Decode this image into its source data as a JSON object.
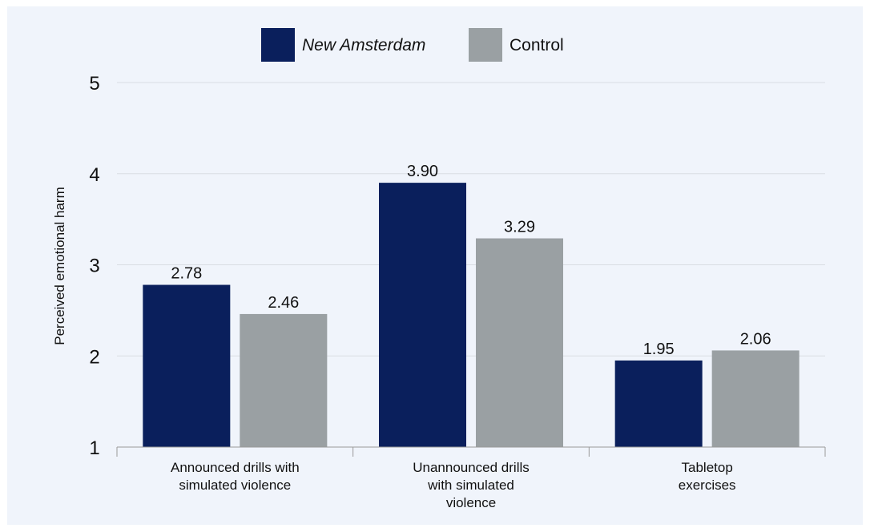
{
  "chart_data": {
    "type": "bar",
    "title": "",
    "xlabel": "",
    "ylabel": "Perceived emotional harm",
    "ylim": [
      1,
      5
    ],
    "yticks": [
      1,
      2,
      3,
      4,
      5
    ],
    "grid": true,
    "legend_position": "top",
    "categories": [
      [
        "Announced drills with",
        "simulated violence"
      ],
      [
        "Unannounced drills",
        "with simulated",
        "violence"
      ],
      [
        "Tabletop",
        "exercises"
      ]
    ],
    "series": [
      {
        "name": "New Amsterdam",
        "italic": true,
        "color": "#0a1f5c",
        "values": [
          2.78,
          3.9,
          1.95
        ],
        "labels": [
          "2.78",
          "3.90",
          "1.95"
        ]
      },
      {
        "name": "Control",
        "italic": false,
        "color": "#9aa0a3",
        "values": [
          2.46,
          3.29,
          2.06
        ],
        "labels": [
          "2.46",
          "3.29",
          "2.06"
        ]
      }
    ],
    "colors": {
      "background": "#f0f4fb",
      "grid": "#d9dde3",
      "axis": "#9a9a9a"
    }
  }
}
